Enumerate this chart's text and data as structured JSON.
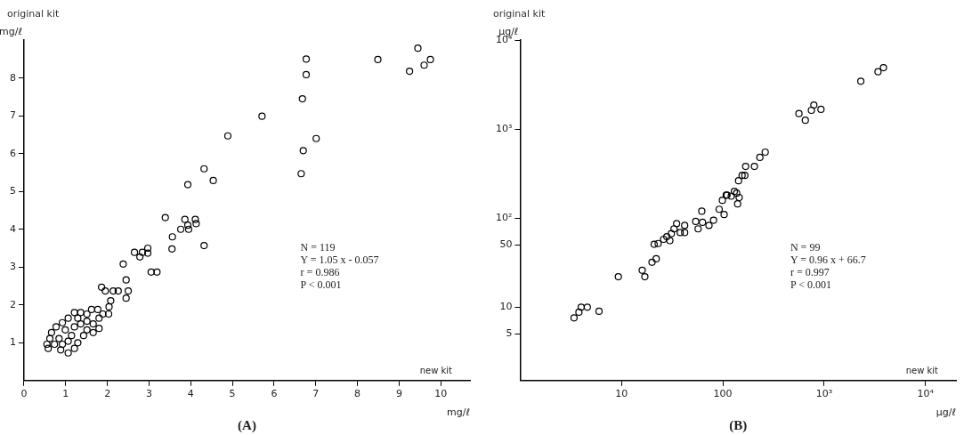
{
  "chart_data": [
    {
      "type": "scatter",
      "title": "original kit",
      "ylabel": "mg/ℓ",
      "xlabel": "mg/ℓ",
      "annotations": [
        "new kit",
        "N = 119",
        "Y = 1.05 x - 0.057",
        "r = 0.986",
        "P < 0.001",
        "(A)"
      ],
      "x": [
        4.89,
        4.32,
        4.54,
        3.93,
        3.39,
        3.76,
        3.86,
        3.93,
        3.95,
        4.11,
        4.13,
        3.56,
        3.55,
        4.32,
        2.65,
        2.78,
        2.84,
        2.97,
        2.97,
        3.05,
        3.19,
        2.38,
        2.45,
        2.5,
        2.45,
        2.26,
        2.14,
        1.95,
        1.86,
        2.08,
        2.04,
        1.89,
        2.03,
        1.77,
        1.62,
        1.51,
        1.36,
        1.21,
        1.06,
        0.92,
        0.77,
        0.66,
        0.62,
        0.73,
        0.88,
        1.06,
        1.21,
        1.29,
        1.14,
        0.99,
        0.84,
        1.43,
        1.51,
        1.66,
        1.8,
        1.66,
        1.8,
        1.36,
        1.21,
        1.06,
        0.92,
        0.55,
        0.58,
        1.29,
        1.51,
        5.71,
        6.68,
        6.77,
        6.77,
        7.01,
        6.7,
        6.65,
        8.49,
        9.45,
        9.75,
        9.6,
        9.25
      ],
      "series": [
        {
          "color": "#000000",
          "values": [
            6.47,
            5.6,
            5.29,
            5.18,
            4.31,
            4.0,
            4.26,
            4.11,
            4.0,
            4.26,
            4.15,
            3.8,
            3.48,
            3.57,
            3.39,
            3.27,
            3.39,
            3.5,
            3.37,
            2.87,
            2.87,
            3.08,
            2.66,
            2.37,
            2.18,
            2.37,
            2.37,
            2.37,
            2.47,
            2.11,
            1.95,
            1.76,
            1.76,
            1.88,
            1.88,
            1.76,
            1.8,
            1.8,
            1.65,
            1.53,
            1.42,
            1.27,
            1.11,
            0.96,
            0.81,
            0.73,
            0.85,
            1.0,
            1.19,
            1.34,
            1.11,
            1.19,
            1.34,
            1.27,
            1.38,
            1.5,
            1.65,
            1.5,
            1.42,
            1.04,
            0.96,
            0.96,
            0.85,
            1.65,
            1.57,
            6.99,
            7.45,
            8.09,
            8.5,
            6.4,
            6.08,
            5.47,
            8.49,
            8.79,
            8.49,
            8.34,
            8.18
          ]
        }
      ],
      "xlim": [
        0,
        10.7
      ],
      "ylim": [
        0,
        9
      ],
      "xticks": [
        0,
        1,
        2,
        3,
        4,
        5,
        6,
        7,
        8,
        9,
        10
      ],
      "yticks": [
        1,
        2,
        3,
        4,
        5,
        6,
        7,
        8
      ],
      "grid": false,
      "legend": false,
      "marker": "circle"
    },
    {
      "type": "scatter",
      "title": "original kit",
      "ylabel": "μg/ℓ",
      "xlabel": "μg/ℓ",
      "annotations": [
        "new kit",
        "N = 99",
        "Y = 0.96 x + 66.7",
        "r = 0.997",
        "P < 0.001",
        "(B)"
      ],
      "x": [
        3.4,
        3.8,
        4.0,
        4.6,
        6.0,
        9.3,
        16,
        17,
        20,
        22,
        21,
        23,
        26,
        28,
        30,
        31,
        33,
        35,
        38,
        42,
        42,
        54,
        57,
        62,
        63,
        73,
        81,
        92,
        99,
        110,
        121,
        130,
        140,
        145,
        143,
        155,
        168,
        103,
        108,
        137,
        165,
        205,
        232,
        262,
        564,
        652,
        748,
        791,
        930,
        2300,
        3400,
        3850
      ],
      "series": [
        {
          "color": "#000000",
          "values": [
            7.6,
            8.8,
            10,
            10,
            9.0,
            22,
            26,
            22,
            32,
            35,
            51,
            52,
            58,
            62,
            56,
            67,
            76,
            87,
            69,
            69,
            83,
            92,
            76,
            120,
            90,
            83,
            95,
            126,
            159,
            182,
            177,
            200,
            145,
            171,
            264,
            303,
            382,
            110,
            182,
            191,
            303,
            382,
            482,
            553,
            1500,
            1260,
            1630,
            1870,
            1670,
            3460,
            4420,
            4910
          ]
        }
      ],
      "xlim": [
        1,
        20000
      ],
      "ylim": [
        1.5,
        10000
      ],
      "xticks": [
        {
          "value": 10,
          "label": "10"
        },
        {
          "value": 100,
          "label": "100"
        },
        {
          "value": 1000,
          "label": "10³"
        },
        {
          "value": 10000,
          "label": "10⁴"
        }
      ],
      "yticks": [
        5,
        10,
        50,
        {
          "value": 100,
          "label": "10²"
        },
        {
          "value": 1000,
          "label": "10³"
        },
        {
          "value": 10000,
          "label": "10⁴"
        }
      ],
      "log": "xy",
      "grid": false,
      "legend": false,
      "marker": "circle"
    }
  ]
}
